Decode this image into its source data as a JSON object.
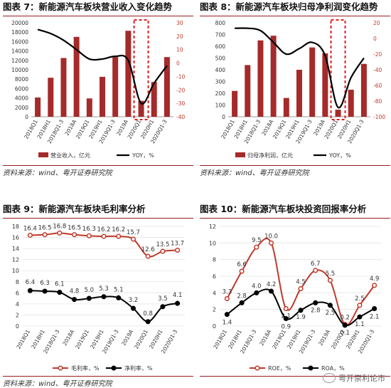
{
  "panels": [
    {
      "title": "图表 7：新能源汽车板块营业收入变化趋势",
      "source": "资料来源：wind、粤开证券研究院",
      "chart_data": {
        "type": "bar",
        "categories": [
          "2018Q1",
          "2018H1",
          "2018Q1-3",
          "2018A",
          "2019Q1",
          "2019H1",
          "2019Q1-3",
          "2019A",
          "2020Q1",
          "2020H1",
          "2020Q1-3"
        ],
        "series": [
          {
            "name": "营业收入，亿元",
            "type": "bar",
            "axis": "left",
            "color": "#a52a2a",
            "values": [
              4100,
              8300,
              12500,
              17000,
              3900,
              8500,
              12700,
              18300,
              3400,
              7400,
              12700
            ]
          },
          {
            "name": "YOY，%",
            "type": "line",
            "axis": "right",
            "color": "#000000",
            "values": [
              25,
              22,
              17,
              10,
              3,
              3,
              5,
              2,
              -30,
              -15,
              -2
            ]
          }
        ],
        "ylim_left": [
          0,
          20000
        ],
        "yticks_left": [
          0,
          2000,
          4000,
          6000,
          8000,
          10000,
          12000,
          14000,
          16000,
          18000,
          20000
        ],
        "ylim_right": [
          -40,
          30
        ],
        "yticks_right": [
          -40,
          -30,
          -20,
          -10,
          0,
          10,
          20,
          30
        ],
        "highlight_index": 8,
        "legend": "bottom"
      }
    },
    {
      "title": "图表 8：新能源汽车板块归母净利润变化趋势",
      "source": "资料来源：wind、粤开证券研究院",
      "chart_data": {
        "type": "bar",
        "categories": [
          "2018Q1",
          "2018H1",
          "2018Q1-3",
          "2018A",
          "2019Q1",
          "2019H1",
          "2019Q1-3",
          "2019A",
          "2020Q1",
          "2020H1",
          "2020Q1-3"
        ],
        "series": [
          {
            "name": "归母净利润，亿元",
            "type": "bar",
            "axis": "left",
            "color": "#a52a2a",
            "values": [
              220,
              440,
              650,
              690,
              160,
              400,
              590,
              540,
              60,
              230,
              450
            ]
          },
          {
            "name": "YOY，%",
            "type": "line",
            "axis": "right",
            "color": "#000000",
            "values": [
              13,
              13,
              10,
              -5,
              -20,
              -13,
              -5,
              -22,
              -88,
              -50,
              -25
            ]
          }
        ],
        "ylim_left": [
          0,
          800
        ],
        "yticks_left": [
          0,
          100,
          200,
          300,
          400,
          500,
          600,
          700,
          800
        ],
        "ylim_right": [
          -100,
          20
        ],
        "yticks_right": [
          -100,
          -80,
          -60,
          -40,
          -20,
          0,
          20
        ],
        "highlight_index": 8,
        "legend": "bottom"
      }
    },
    {
      "title": "图表 9：新能源汽车板块毛利率分析",
      "source": "资料来源：wind、粤开证券研究院",
      "chart_data": {
        "type": "line",
        "categories": [
          "2018Q1",
          "2018H1",
          "2018Q1-3",
          "2018A",
          "2019Q1",
          "2019H1",
          "2019Q1-3",
          "2019A",
          "2020Q1",
          "2020H1",
          "2020Q1-3"
        ],
        "series": [
          {
            "name": "毛利率，%",
            "color": "#c0392b",
            "marker": "open",
            "values": [
              16.4,
              16.5,
              16.8,
              16.5,
              16.3,
              16.2,
              16.2,
              15.7,
              12.6,
              13.5,
              13.7
            ],
            "labels": [
              "16.4",
              "16.5",
              "16.8",
              "16.5",
              "16.3",
              "16.2",
              "16.2",
              "15.7",
              "12.6",
              "13.5",
              "13.7"
            ]
          },
          {
            "name": "净利率，%",
            "color": "#000000",
            "marker": "filled",
            "values": [
              6.4,
              6.3,
              6.1,
              4.8,
              5.0,
              5.3,
              5.1,
              3.2,
              0.8,
              3.5,
              4.1
            ],
            "labels": [
              "6.4",
              "6.3",
              "6.1",
              "4.8",
              "5.0",
              "5.3",
              "5.1",
              "3.2",
              "0.8",
              "3.5",
              "4.1"
            ]
          }
        ],
        "ylim": [
          0,
          18
        ],
        "yticks": [
          0,
          2,
          4,
          6,
          8,
          10,
          12,
          14,
          16,
          18
        ],
        "legend": "bottom"
      }
    },
    {
      "title": "图表 10：新能源汽车板块投资回报率分析",
      "source": "资料来源：wind、粤开证券研究院",
      "chart_data": {
        "type": "line",
        "categories": [
          "2018Q1",
          "2018H1",
          "2018Q1-3",
          "2018A",
          "2019Q1",
          "2019H1",
          "2019Q1-3",
          "2019A",
          "2020Q1",
          "2020H1",
          "2020Q1-3"
        ],
        "series": [
          {
            "name": "ROE，%",
            "color": "#c0392b",
            "marker": "open",
            "values": [
              3.3,
              6.6,
              9.5,
              10.0,
              2.1,
              4.5,
              6.7,
              5.5,
              0.2,
              2.5,
              4.9
            ],
            "labels": [
              "3.3",
              "6.6",
              "9.5",
              "10.0",
              "2.1",
              "4.5",
              "6.7",
              "5.5",
              "0.2",
              "2.5",
              "4.9"
            ]
          },
          {
            "name": "ROA，%",
            "color": "#000000",
            "marker": "filled",
            "values": [
              1.4,
              2.8,
              4.0,
              4.2,
              0.9,
              1.9,
              2.8,
              2.5,
              0.1,
              1.1,
              2.1
            ],
            "labels": [
              "1.4",
              "2.8",
              "4.0",
              "4.2",
              "0.9",
              "1.9",
              "2.8",
              "2.5",
              "0.1",
              "1.1",
              "2.1"
            ]
          }
        ],
        "ylim": [
          0,
          12
        ],
        "yticks": [
          0,
          2,
          4,
          6,
          8,
          10,
          12
        ],
        "legend": "bottom"
      }
    }
  ],
  "watermark": "粤开崇利论市"
}
